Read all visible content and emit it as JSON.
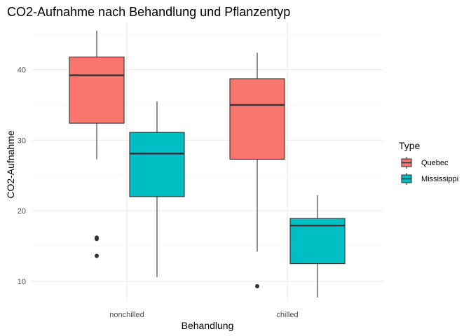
{
  "chart_data": {
    "type": "boxplot",
    "title": "CO2-Aufnahme nach Behandlung und Pflanzentyp",
    "xlabel": "Behandlung",
    "ylabel": "CO2-Aufnahme",
    "categories": [
      "nonchilled",
      "chilled"
    ],
    "yticks": [
      10,
      20,
      30,
      40
    ],
    "ylim": [
      7.2,
      46.7
    ],
    "grid": true,
    "legend": {
      "title": "Type",
      "position": "right"
    },
    "series": [
      {
        "name": "Quebec",
        "color": "#F8766D",
        "boxes": [
          {
            "category": "nonchilled",
            "min": 27.3,
            "q1": 32.4,
            "median": 39.2,
            "q3": 41.8,
            "max": 45.5,
            "outliers": [
              16.0,
              16.2,
              13.6
            ]
          },
          {
            "category": "chilled",
            "min": 14.2,
            "q1": 27.3,
            "median": 35.0,
            "q3": 38.7,
            "max": 42.4,
            "outliers": [
              9.3
            ]
          }
        ]
      },
      {
        "name": "Mississippi",
        "color": "#00BFC4",
        "boxes": [
          {
            "category": "nonchilled",
            "min": 10.6,
            "q1": 22.0,
            "median": 28.1,
            "q3": 31.1,
            "max": 35.5,
            "outliers": []
          },
          {
            "category": "chilled",
            "min": 7.7,
            "q1": 12.5,
            "median": 17.9,
            "q3": 18.9,
            "max": 22.2,
            "outliers": []
          }
        ]
      }
    ]
  }
}
